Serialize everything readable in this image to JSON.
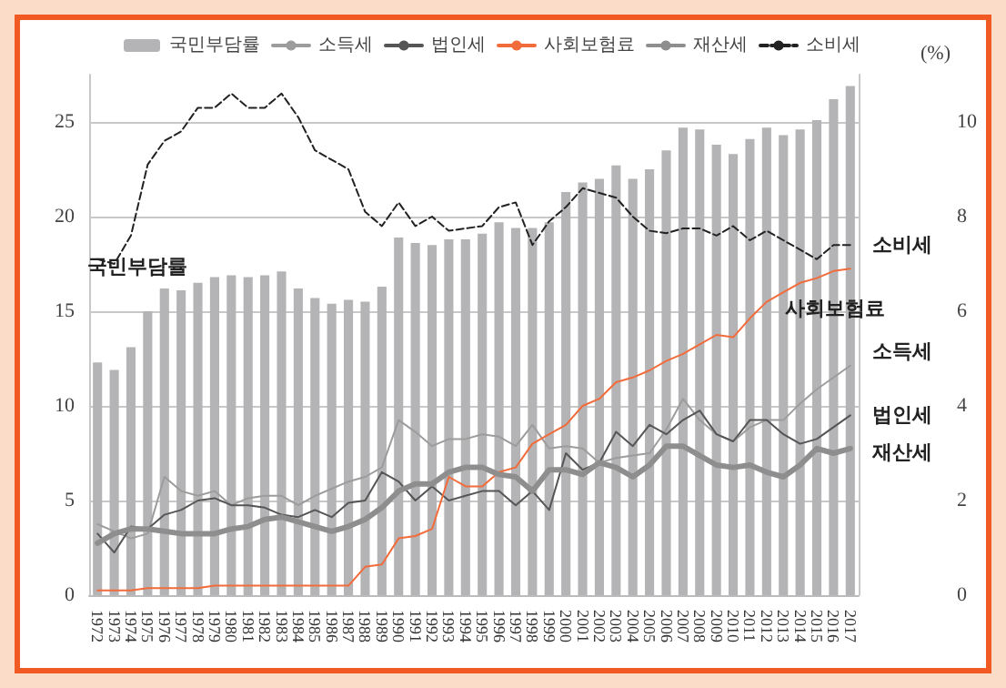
{
  "chart_data": {
    "type": "bar",
    "y2label": "(%)",
    "categories": [
      "1972",
      "1973",
      "1974",
      "1975",
      "1976",
      "1977",
      "1978",
      "1979",
      "1980",
      "1981",
      "1982",
      "1983",
      "1984",
      "1985",
      "1986",
      "1987",
      "1988",
      "1989",
      "1990",
      "1991",
      "1992",
      "1993",
      "1994",
      "1995",
      "1996",
      "1997",
      "1998",
      "1999",
      "2000",
      "2001",
      "2002",
      "2003",
      "2004",
      "2005",
      "2006",
      "2007",
      "2008",
      "2009",
      "2010",
      "2011",
      "2012",
      "2013",
      "2014",
      "2015",
      "2016",
      "2017"
    ],
    "series": [
      {
        "name": "국민부담률",
        "color": "#b4b4b6",
        "values": [
          12.3,
          11.9,
          13.1,
          15.0,
          16.2,
          16.1,
          16.5,
          16.8,
          16.9,
          16.8,
          16.9,
          17.1,
          16.2,
          15.7,
          15.4,
          15.6,
          15.5,
          16.3,
          18.9,
          18.6,
          18.5,
          18.8,
          18.8,
          19.1,
          19.7,
          19.4,
          19.4,
          19.7,
          21.3,
          21.8,
          22.0,
          22.7,
          22.0,
          22.5,
          23.5,
          24.7,
          24.6,
          23.8,
          23.3,
          24.1,
          24.7,
          24.3,
          24.6,
          25.1,
          26.2,
          26.9
        ]
      },
      {
        "name": "소득세",
        "type": "line",
        "axis": "y2",
        "color": "#9c9c9c",
        "line_style": "solid",
        "values": [
          1.5,
          1.35,
          1.2,
          1.3,
          2.5,
          2.2,
          2.1,
          2.2,
          1.9,
          2.05,
          2.1,
          2.1,
          1.9,
          2.1,
          2.25,
          2.4,
          2.5,
          2.7,
          3.7,
          3.45,
          3.15,
          3.3,
          3.3,
          3.4,
          3.35,
          3.15,
          3.6,
          3.1,
          3.15,
          3.1,
          2.8,
          2.9,
          2.95,
          3.0,
          3.5,
          4.15,
          3.7,
          3.4,
          3.25,
          3.55,
          3.7,
          3.7,
          4.05,
          4.35,
          4.6,
          4.85
        ]
      },
      {
        "name": "법인세",
        "type": "line",
        "axis": "y2",
        "color": "#555555",
        "line_style": "solid",
        "values": [
          1.3,
          0.9,
          1.45,
          1.4,
          1.7,
          1.8,
          2.0,
          2.05,
          1.9,
          1.9,
          1.85,
          1.7,
          1.65,
          1.8,
          1.65,
          1.95,
          2.0,
          2.6,
          2.4,
          2.0,
          2.3,
          2.0,
          2.1,
          2.2,
          2.2,
          1.9,
          2.2,
          1.8,
          3.0,
          2.65,
          2.8,
          3.45,
          3.15,
          3.6,
          3.4,
          3.7,
          3.9,
          3.4,
          3.25,
          3.7,
          3.7,
          3.4,
          3.2,
          3.3,
          3.55,
          3.8
        ]
      },
      {
        "name": "사회보험료",
        "type": "line",
        "axis": "y2",
        "color": "#f26b3a",
        "line_style": "solid",
        "values": [
          0.1,
          0.1,
          0.1,
          0.15,
          0.15,
          0.15,
          0.15,
          0.2,
          0.2,
          0.2,
          0.2,
          0.2,
          0.2,
          0.2,
          0.2,
          0.2,
          0.6,
          0.65,
          1.2,
          1.25,
          1.4,
          2.5,
          2.3,
          2.3,
          2.6,
          2.7,
          3.2,
          3.4,
          3.6,
          4.0,
          4.15,
          4.5,
          4.6,
          4.75,
          4.95,
          5.1,
          5.3,
          5.5,
          5.45,
          5.85,
          6.2,
          6.4,
          6.6,
          6.7,
          6.85,
          6.9
        ]
      },
      {
        "name": "재산세",
        "type": "line",
        "axis": "y2",
        "color": "#8e8e8e",
        "line_style": "solid",
        "values": [
          1.1,
          1.3,
          1.4,
          1.4,
          1.35,
          1.3,
          1.3,
          1.3,
          1.4,
          1.45,
          1.6,
          1.65,
          1.55,
          1.45,
          1.35,
          1.45,
          1.6,
          1.85,
          2.2,
          2.35,
          2.35,
          2.6,
          2.7,
          2.7,
          2.55,
          2.5,
          2.2,
          2.65,
          2.65,
          2.55,
          2.8,
          2.7,
          2.5,
          2.75,
          3.15,
          3.15,
          2.95,
          2.75,
          2.7,
          2.75,
          2.6,
          2.5,
          2.75,
          3.1,
          3.0,
          3.1
        ]
      },
      {
        "name": "소비세",
        "type": "line",
        "axis": "y2",
        "color": "#222222",
        "line_style": "dashed",
        "values": [
          7.1,
          7.0,
          7.6,
          9.1,
          9.6,
          9.8,
          10.3,
          10.3,
          10.6,
          10.3,
          10.3,
          10.6,
          10.1,
          9.4,
          9.2,
          9.0,
          8.1,
          7.8,
          8.3,
          7.8,
          8.0,
          7.7,
          7.75,
          7.8,
          8.2,
          8.3,
          7.4,
          7.9,
          8.2,
          8.6,
          8.5,
          8.4,
          8.0,
          7.7,
          7.65,
          7.75,
          7.75,
          7.6,
          7.8,
          7.5,
          7.7,
          7.5,
          7.3,
          7.1,
          7.4,
          7.4
        ]
      }
    ],
    "ylim": [
      0,
      27.5
    ],
    "yticks": [
      0,
      5,
      10,
      15,
      20,
      25
    ],
    "y2lim": [
      0,
      11
    ],
    "y2ticks": [
      0,
      2,
      4,
      6,
      8,
      10
    ],
    "grid": "y",
    "legend": "top",
    "marker": "none"
  }
}
